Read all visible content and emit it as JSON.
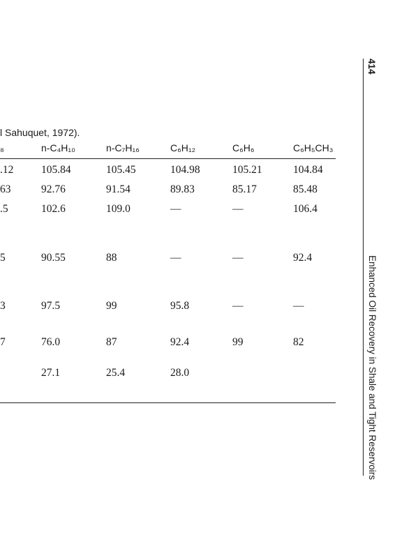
{
  "caption": "l Sahuquet, 1972).",
  "table": {
    "header": [
      "₈",
      "n-C₄H₁₀",
      "n-C₇H₁₆",
      "C₆H₁₂",
      "C₆H₆",
      "C₆H₅CH₃"
    ],
    "rows": [
      [
        ".12",
        "105.84",
        "105.45",
        "104.98",
        "105.21",
        "104.84"
      ],
      [
        "63",
        "92.76",
        "91.54",
        "89.83",
        "85.17",
        "85.48"
      ],
      [
        ".5",
        "102.6",
        "109.0",
        "—",
        "—",
        "106.4"
      ],
      [
        "5",
        "90.55",
        "88",
        "—",
        "—",
        "92.4"
      ],
      [
        "3",
        "97.5",
        "99",
        "95.8",
        "—",
        "—"
      ],
      [
        "7",
        "76.0",
        "87",
        "92.4",
        "99",
        "82"
      ],
      [
        null,
        "27.1",
        "25.4",
        "28.0",
        null,
        null
      ]
    ]
  },
  "page_number": "414",
  "running_title": "Enhanced Oil Recovery in Shale and Tight Reservoirs"
}
